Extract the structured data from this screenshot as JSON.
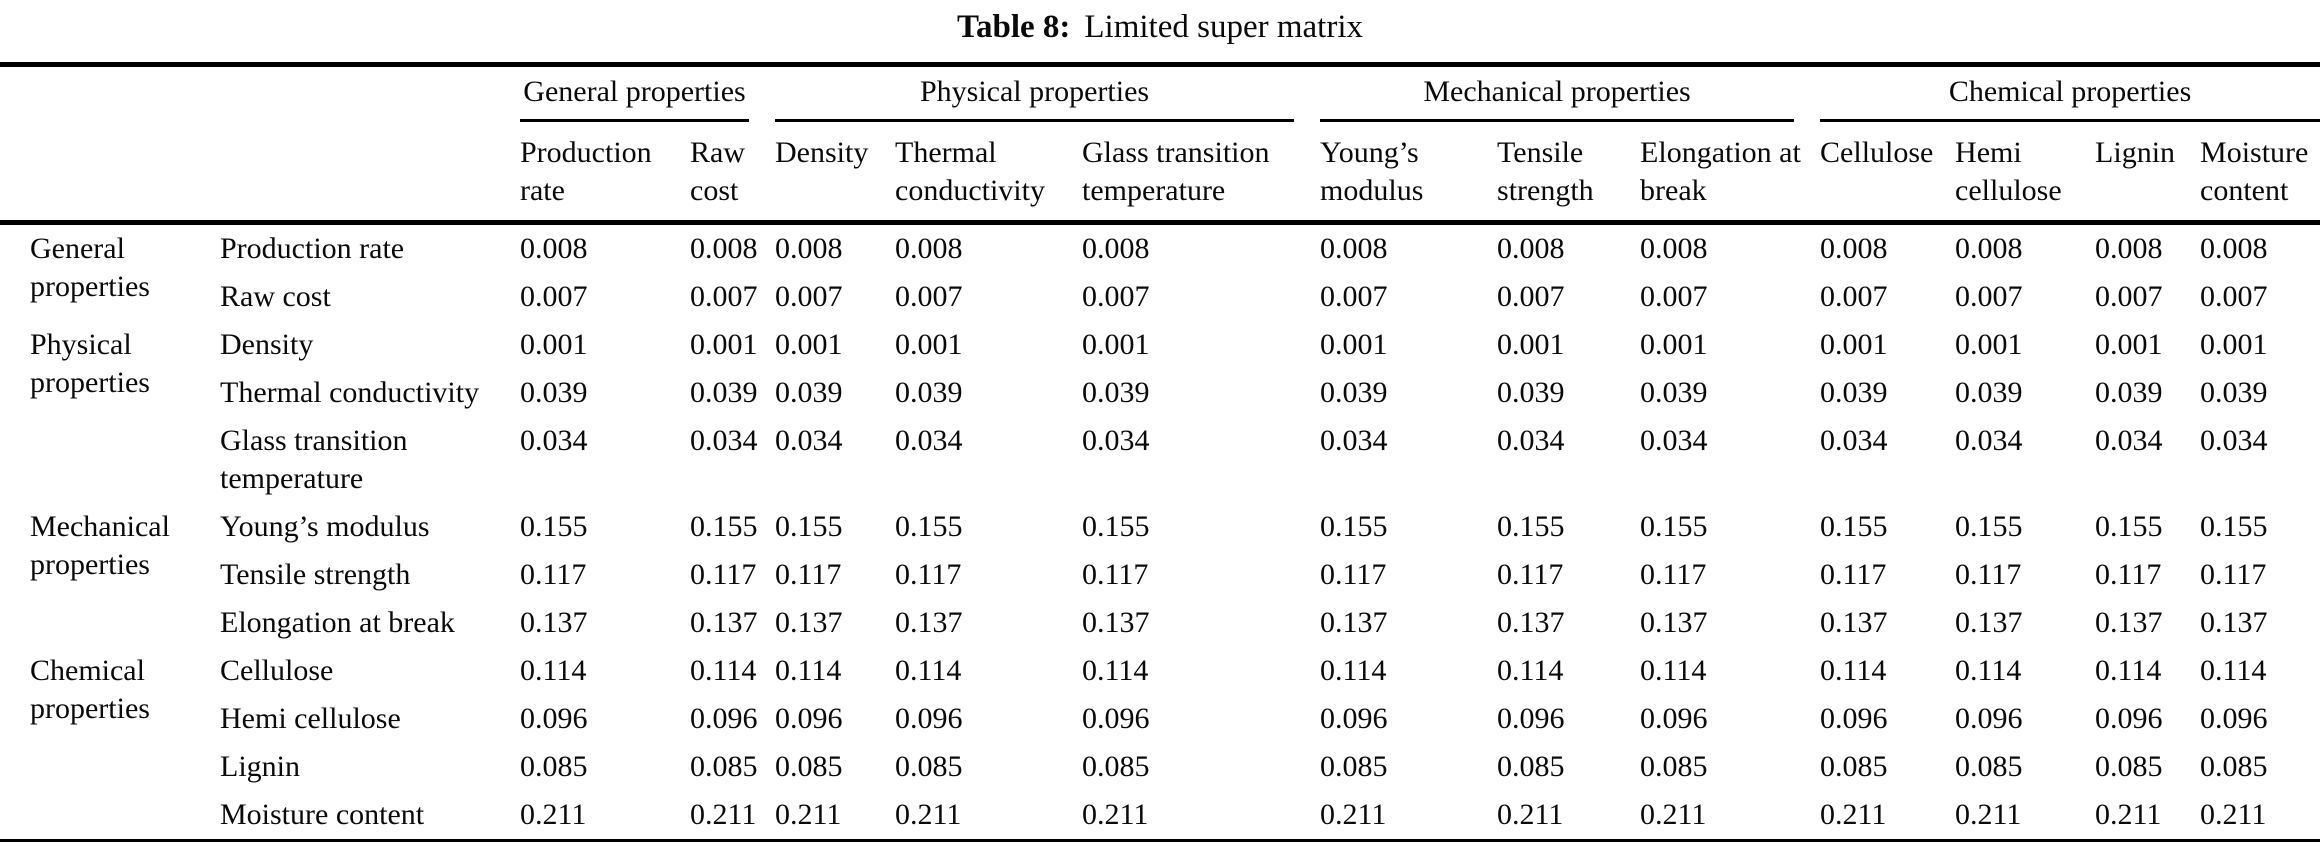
{
  "title": {
    "label": "Table 8:",
    "caption": "Limited super matrix"
  },
  "colors": {
    "background": "#ffffff",
    "text": "#0a0a0a",
    "rule": "#000000"
  },
  "table": {
    "column_groups": [
      {
        "label": "General properties",
        "columns": [
          "Production rate",
          "Raw cost"
        ]
      },
      {
        "label": "Physical properties",
        "columns": [
          "Density",
          "Thermal conductivity",
          "Glass transition temperature"
        ]
      },
      {
        "label": "Mechanical properties",
        "columns": [
          "Young’s modulus",
          "Tensile strength",
          "Elongation at break"
        ]
      },
      {
        "label": "Chemical properties",
        "columns": [
          "Cellulose",
          "Hemi cellulose",
          "Lignin",
          "Moisture content"
        ]
      }
    ],
    "num_value_columns": 12,
    "row_groups": [
      {
        "label": "General properties",
        "rows": [
          {
            "label": "Production rate",
            "values": [
              "0.008",
              "0.008",
              "0.008",
              "0.008",
              "0.008",
              "0.008",
              "0.008",
              "0.008",
              "0.008",
              "0.008",
              "0.008",
              "0.008"
            ]
          },
          {
            "label": "Raw cost",
            "values": [
              "0.007",
              "0.007",
              "0.007",
              "0.007",
              "0.007",
              "0.007",
              "0.007",
              "0.007",
              "0.007",
              "0.007",
              "0.007",
              "0.007"
            ]
          }
        ]
      },
      {
        "label": "Physical properties",
        "rows": [
          {
            "label": "Density",
            "values": [
              "0.001",
              "0.001",
              "0.001",
              "0.001",
              "0.001",
              "0.001",
              "0.001",
              "0.001",
              "0.001",
              "0.001",
              "0.001",
              "0.001"
            ]
          },
          {
            "label": "Thermal conductivity",
            "values": [
              "0.039",
              "0.039",
              "0.039",
              "0.039",
              "0.039",
              "0.039",
              "0.039",
              "0.039",
              "0.039",
              "0.039",
              "0.039",
              "0.039"
            ]
          },
          {
            "label": "Glass transition temperature",
            "values": [
              "0.034",
              "0.034",
              "0.034",
              "0.034",
              "0.034",
              "0.034",
              "0.034",
              "0.034",
              "0.034",
              "0.034",
              "0.034",
              "0.034"
            ]
          }
        ]
      },
      {
        "label": "Mechanical properties",
        "rows": [
          {
            "label": "Young’s modulus",
            "values": [
              "0.155",
              "0.155",
              "0.155",
              "0.155",
              "0.155",
              "0.155",
              "0.155",
              "0.155",
              "0.155",
              "0.155",
              "0.155",
              "0.155"
            ]
          },
          {
            "label": "Tensile strength",
            "values": [
              "0.117",
              "0.117",
              "0.117",
              "0.117",
              "0.117",
              "0.117",
              "0.117",
              "0.117",
              "0.117",
              "0.117",
              "0.117",
              "0.117"
            ]
          },
          {
            "label": "Elongation at break",
            "values": [
              "0.137",
              "0.137",
              "0.137",
              "0.137",
              "0.137",
              "0.137",
              "0.137",
              "0.137",
              "0.137",
              "0.137",
              "0.137",
              "0.137"
            ]
          }
        ]
      },
      {
        "label": "Chemical properties",
        "rows": [
          {
            "label": "Cellulose",
            "values": [
              "0.114",
              "0.114",
              "0.114",
              "0.114",
              "0.114",
              "0.114",
              "0.114",
              "0.114",
              "0.114",
              "0.114",
              "0.114",
              "0.114"
            ]
          },
          {
            "label": "Hemi cellulose",
            "values": [
              "0.096",
              "0.096",
              "0.096",
              "0.096",
              "0.096",
              "0.096",
              "0.096",
              "0.096",
              "0.096",
              "0.096",
              "0.096",
              "0.096"
            ]
          },
          {
            "label": "Lignin",
            "values": [
              "0.085",
              "0.085",
              "0.085",
              "0.085",
              "0.085",
              "0.085",
              "0.085",
              "0.085",
              "0.085",
              "0.085",
              "0.085",
              "0.085"
            ]
          },
          {
            "label": "Moisture content",
            "values": [
              "0.211",
              "0.211",
              "0.211",
              "0.211",
              "0.211",
              "0.211",
              "0.211",
              "0.211",
              "0.211",
              "0.211",
              "0.211",
              "0.211"
            ]
          }
        ]
      }
    ]
  }
}
